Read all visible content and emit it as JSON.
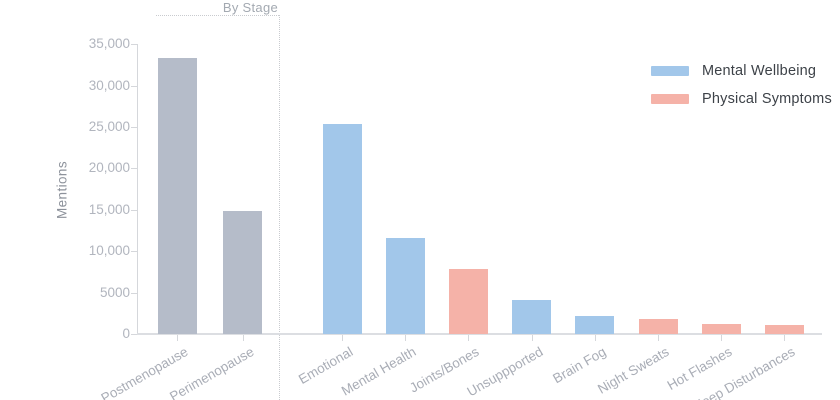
{
  "chart_data": {
    "type": "bar",
    "group_label": "By Stage",
    "title": "",
    "xlabel": "",
    "ylabel": "Mentions",
    "ylim": [
      0,
      35000
    ],
    "grid": false,
    "legend_position": "upper right",
    "yticks": [
      {
        "value": 0,
        "label": "0"
      },
      {
        "value": 5000,
        "label": "5000"
      },
      {
        "value": 10000,
        "label": "10,000"
      },
      {
        "value": 15000,
        "label": "15,000"
      },
      {
        "value": 20000,
        "label": "20,000"
      },
      {
        "value": 25000,
        "label": "25,000"
      },
      {
        "value": 30000,
        "label": "30,000"
      },
      {
        "value": 35000,
        "label": "35,000"
      }
    ],
    "categories": [
      "Postmenopause",
      "Perimenopause",
      "Emotional",
      "Mental Health",
      "Joints/Bones",
      "Unsuppported",
      "Brain Fog",
      "Night Sweats",
      "Hot Flashes",
      "Sleep Disturbances"
    ],
    "bars": [
      {
        "label": "Postmenopause",
        "value": 33300,
        "series": "stage"
      },
      {
        "label": "Perimenopause",
        "value": 14800,
        "series": "stage"
      },
      {
        "label": "Emotional",
        "value": 25400,
        "series": "mental"
      },
      {
        "label": "Mental Health",
        "value": 11600,
        "series": "mental"
      },
      {
        "label": "Joints/Bones",
        "value": 7800,
        "series": "physical"
      },
      {
        "label": "Unsuppported",
        "value": 4100,
        "series": "mental"
      },
      {
        "label": "Brain Fog",
        "value": 2200,
        "series": "mental"
      },
      {
        "label": "Night Sweats",
        "value": 1800,
        "series": "physical"
      },
      {
        "label": "Hot Flashes",
        "value": 1200,
        "series": "physical"
      },
      {
        "label": "Sleep Disturbances",
        "value": 1100,
        "series": "physical"
      }
    ],
    "series_colors": {
      "stage": "#b5bcc9",
      "mental": "#a2c7ea",
      "physical": "#f5b2a8"
    },
    "legend": [
      {
        "label": "Mental Wellbeing",
        "series": "mental",
        "color": "#a2c7ea"
      },
      {
        "label": "Physical Symptoms",
        "series": "physical",
        "color": "#f5b2a8"
      }
    ]
  }
}
